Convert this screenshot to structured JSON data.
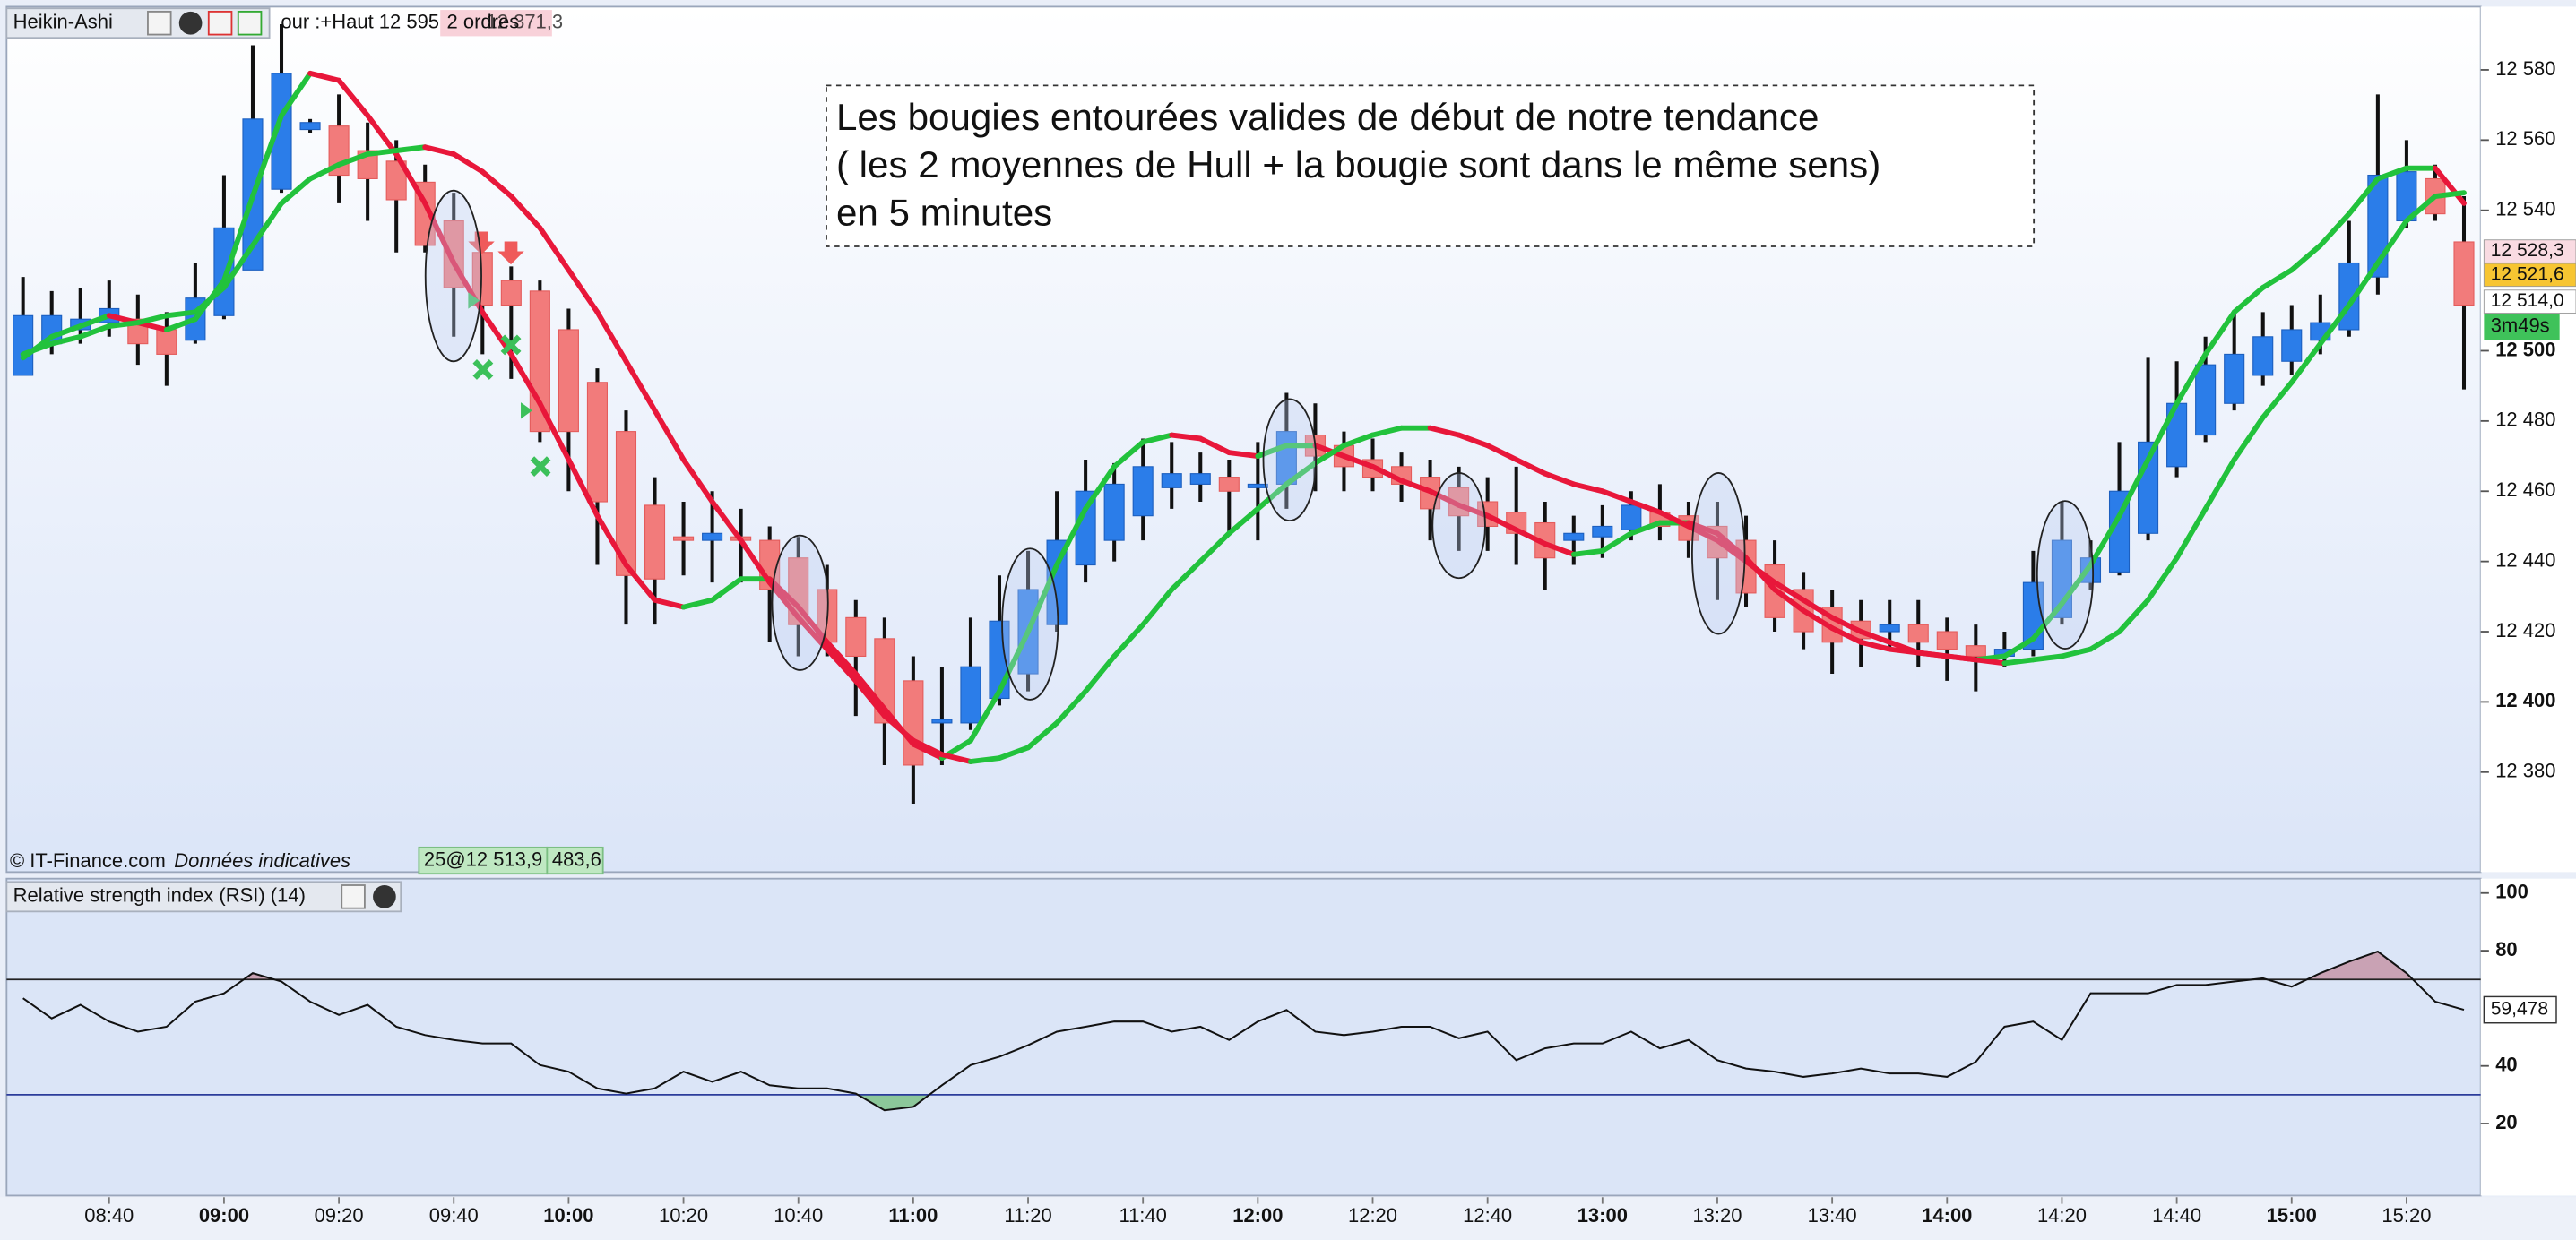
{
  "chart_data": [
    {
      "type": "candlestick",
      "title": "Heikin-Ashi",
      "info": "our :+Haut 12 595",
      "orders": "2 ordres",
      "info_value": "12 371,3",
      "annotation": [
        "Les bougies entourées valides de début de notre tendance",
        "( les 2 moyennes de Hull + la bougie sont dans le même sens)",
        "en 5 minutes"
      ],
      "copyright": "© IT-Finance.com",
      "note": "Données indicatives",
      "position_tags": [
        "25@12 513,9",
        "483,6"
      ],
      "timer": "3m49s",
      "up_color": "#2b7de9",
      "down_color": "#f27b7b",
      "categories": [
        null,
        null,
        null,
        "08:40",
        null,
        null,
        null,
        "09:00",
        null,
        null,
        null,
        "09:20",
        null,
        null,
        null,
        "09:40",
        null,
        null,
        null,
        "10:00",
        null,
        null,
        null,
        "10:20",
        null,
        null,
        null,
        "10:40",
        null,
        null,
        null,
        "11:00",
        null,
        null,
        null,
        "11:20",
        null,
        null,
        null,
        "11:40",
        null,
        null,
        null,
        "12:00",
        null,
        null,
        null,
        "12:20",
        null,
        null,
        null,
        "12:40",
        null,
        null,
        null,
        "13:00",
        null,
        null,
        null,
        "13:20",
        null,
        null,
        null,
        "13:40",
        null,
        null,
        null,
        "14:00",
        null,
        null,
        null,
        "14:20",
        null,
        null,
        null,
        "14:40",
        null,
        null,
        null,
        "15:00",
        null,
        null,
        null,
        "15:20",
        null,
        null
      ],
      "open": [
        12493,
        12502,
        12506,
        12508,
        12509,
        12506,
        12503,
        12510,
        12523,
        12546,
        12563,
        12564,
        12557,
        12554,
        12548,
        12537,
        12528,
        12520,
        12517,
        12506,
        12491,
        12477,
        12456,
        12447,
        12446,
        12447,
        12446,
        12441,
        12432,
        12424,
        12418,
        12406,
        12394,
        12394,
        12401,
        12408,
        12422,
        12439,
        12446,
        12453,
        12461,
        12462,
        12464,
        12461,
        12462,
        12476,
        12473,
        12469,
        12467,
        12464,
        12461,
        12457,
        12454,
        12451,
        12446,
        12447,
        12449,
        12454,
        12453,
        12450,
        12446,
        12439,
        12432,
        12427,
        12423,
        12420,
        12422,
        12420,
        12416,
        12413,
        12415,
        12424,
        12434,
        12437,
        12448,
        12467,
        12476,
        12485,
        12493,
        12497,
        12503,
        12506,
        12521,
        12537,
        12549,
        12531
      ],
      "high": [
        12521,
        12517,
        12518,
        12520,
        12516,
        12511,
        12525,
        12550,
        12587,
        12593,
        12566,
        12573,
        12565,
        12560,
        12553,
        12545,
        12532,
        12524,
        12520,
        12512,
        12495,
        12483,
        12464,
        12457,
        12460,
        12455,
        12450,
        12447,
        12439,
        12429,
        12424,
        12413,
        12410,
        12424,
        12436,
        12443,
        12460,
        12469,
        12468,
        12475,
        12474,
        12471,
        12469,
        12474,
        12488,
        12485,
        12477,
        12475,
        12471,
        12469,
        12467,
        12464,
        12467,
        12457,
        12453,
        12456,
        12460,
        12462,
        12457,
        12457,
        12453,
        12446,
        12437,
        12432,
        12429,
        12429,
        12429,
        12424,
        12422,
        12420,
        12443,
        12457,
        12446,
        12474,
        12498,
        12497,
        12504,
        12511,
        12511,
        12513,
        12516,
        12537,
        12573,
        12560,
        12553,
        12544
      ],
      "low": [
        12493,
        12499,
        12502,
        12504,
        12496,
        12490,
        12502,
        12509,
        12523,
        12545,
        12562,
        12542,
        12537,
        12528,
        12528,
        12504,
        12499,
        12492,
        12474,
        12460,
        12439,
        12422,
        12422,
        12436,
        12434,
        12434,
        12417,
        12413,
        12413,
        12396,
        12382,
        12371,
        12382,
        12392,
        12399,
        12403,
        12420,
        12434,
        12440,
        12446,
        12455,
        12457,
        12448,
        12446,
        12455,
        12460,
        12460,
        12460,
        12457,
        12446,
        12443,
        12443,
        12439,
        12432,
        12439,
        12441,
        12446,
        12446,
        12441,
        12429,
        12427,
        12420,
        12415,
        12408,
        12410,
        12415,
        12410,
        12406,
        12403,
        12410,
        12413,
        12422,
        12432,
        12436,
        12446,
        12464,
        12474,
        12483,
        12490,
        12493,
        12499,
        12504,
        12516,
        12535,
        12537,
        12489
      ],
      "close": [
        12510,
        12510,
        12509,
        12512,
        12502,
        12499,
        12515,
        12535,
        12566,
        12579,
        12565,
        12550,
        12549,
        12543,
        12530,
        12518,
        12513,
        12513,
        12477,
        12477,
        12457,
        12436,
        12435,
        12446,
        12448,
        12446,
        12432,
        12422,
        12417,
        12413,
        12394,
        12382,
        12395,
        12410,
        12423,
        12432,
        12446,
        12460,
        12462,
        12467,
        12465,
        12465,
        12460,
        12462,
        12477,
        12470,
        12467,
        12464,
        12462,
        12455,
        12453,
        12450,
        12448,
        12441,
        12448,
        12450,
        12456,
        12450,
        12446,
        12441,
        12431,
        12424,
        12420,
        12417,
        12418,
        12422,
        12417,
        12415,
        12413,
        12415,
        12434,
        12446,
        12441,
        12460,
        12474,
        12485,
        12496,
        12499,
        12504,
        12506,
        12508,
        12525,
        12550,
        12551,
        12539,
        12513
      ],
      "overlays": [
        {
          "up_color": "#22c23c",
          "down_color": "#e8173a",
          "values": [
            12498,
            12504,
            12507,
            12510,
            12508,
            12506,
            12509,
            12520,
            12544,
            12567,
            12579,
            12577,
            12567,
            12556,
            12542,
            12525,
            12511,
            12499,
            12485,
            12469,
            12453,
            12439,
            12429,
            12427,
            12429,
            12435,
            12435,
            12427,
            12417,
            12408,
            12398,
            12388,
            12384,
            12389,
            12403,
            12420,
            12439,
            12455,
            12467,
            12474,
            12476,
            12475,
            12471,
            12470,
            12473,
            12473,
            12470,
            12467,
            12463,
            12460,
            12456,
            12453,
            12449,
            12445,
            12442,
            12443,
            12448,
            12451,
            12451,
            12448,
            12441,
            12432,
            12426,
            12421,
            12417,
            12415,
            12414,
            12413,
            12412,
            12413,
            12418,
            12428,
            12439,
            12453,
            12469,
            12485,
            12499,
            12511,
            12518,
            12523,
            12530,
            12539,
            12549,
            12552,
            12552,
            12542
          ]
        },
        {
          "up_color": "#22c23c",
          "down_color": "#e8173a",
          "values": [
            12499,
            12502,
            12504,
            12507,
            12508,
            12510,
            12511,
            12518,
            12530,
            12542,
            12549,
            12553,
            12556,
            12557,
            12558,
            12556,
            12551,
            12544,
            12535,
            12523,
            12511,
            12497,
            12483,
            12469,
            12457,
            12446,
            12434,
            12424,
            12415,
            12406,
            12396,
            12389,
            12385,
            12383,
            12384,
            12387,
            12394,
            12403,
            12413,
            12422,
            12432,
            12440,
            12448,
            12455,
            12462,
            12468,
            12473,
            12476,
            12478,
            12478,
            12476,
            12473,
            12469,
            12465,
            12462,
            12460,
            12457,
            12454,
            12450,
            12446,
            12440,
            12434,
            12429,
            12424,
            12420,
            12417,
            12414,
            12413,
            12412,
            12411,
            12412,
            12413,
            12415,
            12420,
            12429,
            12441,
            12455,
            12469,
            12481,
            12491,
            12502,
            12513,
            12525,
            12537,
            12544,
            12545
          ]
        }
      ],
      "price_tags": [
        {
          "value": 12528.3,
          "label": "12 528,3",
          "color": "#f9dbe2",
          "text_color": "#e0103a"
        },
        {
          "value": 12521.6,
          "label": "12 521,6",
          "color": "#f7c532",
          "text_color": "#111111"
        },
        {
          "value": 12514.0,
          "label": "12 514,0",
          "color": "#ffffff",
          "text_color": "#111111"
        }
      ],
      "ylim": [
        12352,
        12598
      ],
      "yticks": [
        {
          "value": 12580,
          "label": "12 580"
        },
        {
          "value": 12560,
          "label": "12 560"
        },
        {
          "value": 12540,
          "label": "12 540"
        },
        {
          "value": 12500,
          "label": "12 500"
        },
        {
          "value": 12480,
          "label": "12 480"
        },
        {
          "value": 12460,
          "label": "12 460"
        },
        {
          "value": 12440,
          "label": "12 440"
        },
        {
          "value": 12420,
          "label": "12 420"
        },
        {
          "value": 12400,
          "label": "12 400"
        },
        {
          "value": 12380,
          "label": "12 380"
        }
      ]
    },
    {
      "type": "line",
      "title": "Relative strength index (RSI) (14)",
      "color": "#111111",
      "values": [
        63.5,
        56.5,
        61.2,
        55.4,
        51.9,
        53.6,
        62.3,
        65.2,
        72.2,
        69.3,
        62.3,
        57.7,
        61.2,
        53.6,
        50.7,
        49.0,
        47.8,
        47.8,
        40.3,
        38.0,
        32.2,
        30.4,
        32.2,
        38.0,
        34.5,
        38.0,
        33.3,
        32.2,
        32.2,
        30.4,
        24.6,
        25.8,
        33.3,
        40.3,
        43.2,
        47.2,
        51.9,
        53.6,
        55.4,
        55.4,
        51.9,
        53.6,
        49.0,
        55.4,
        59.4,
        51.9,
        50.7,
        51.9,
        53.6,
        53.6,
        49.6,
        51.9,
        42.0,
        46.1,
        47.8,
        47.8,
        51.9,
        46.1,
        49.0,
        42.0,
        39.1,
        38.0,
        36.2,
        37.4,
        39.1,
        37.4,
        37.4,
        36.2,
        41.4,
        53.6,
        55.4,
        49.0,
        65.2,
        65.2,
        65.2,
        68.1,
        68.1,
        69.3,
        70.4,
        67.5,
        72.2,
        76.2,
        79.7,
        72.2,
        62.3,
        59.478
      ],
      "current_value_label": "59,478",
      "levels": [
        {
          "value": 70,
          "color": "#222222",
          "fill": "#c9a2b4"
        },
        {
          "value": 30,
          "color": "#2b3c9b",
          "fill": "#8cc79a"
        }
      ],
      "ylim": [
        -5,
        105
      ],
      "yticks": [
        100,
        80,
        40,
        20
      ]
    }
  ]
}
